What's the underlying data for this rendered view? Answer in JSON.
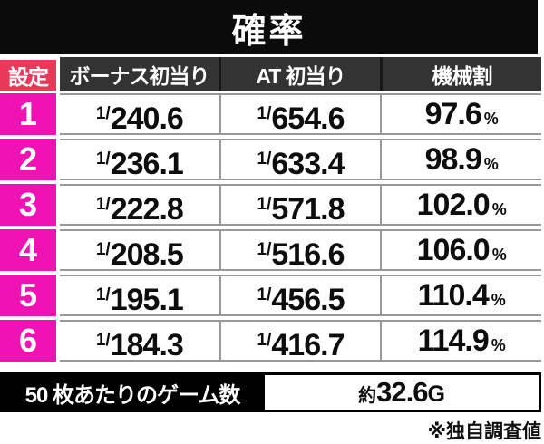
{
  "title": "確率",
  "colors": {
    "title_bar_bg": "#0b0b0b",
    "header_bg": "#333333",
    "setting_header_bg": "#e9395a",
    "setting_cell_bg": "#ee13b2",
    "row_border": "#999999"
  },
  "table": {
    "setting_header": "設定",
    "columns": [
      "ボーナス初当り",
      "AT 初当り",
      "機械割"
    ],
    "fraction_prefix": "1/",
    "percent_suffix": "%",
    "rows": [
      {
        "setting": "1",
        "bonus": "240.6",
        "at": "654.6",
        "payout": "97.6"
      },
      {
        "setting": "2",
        "bonus": "236.1",
        "at": "633.4",
        "payout": "98.9"
      },
      {
        "setting": "3",
        "bonus": "222.8",
        "at": "571.8",
        "payout": "102.0"
      },
      {
        "setting": "4",
        "bonus": "208.5",
        "at": "516.6",
        "payout": "106.0"
      },
      {
        "setting": "5",
        "bonus": "195.1",
        "at": "456.5",
        "payout": "110.4"
      },
      {
        "setting": "6",
        "bonus": "184.3",
        "at": "416.7",
        "payout": "114.9"
      }
    ]
  },
  "summary": {
    "label": "50 枚あたりのゲーム数",
    "value_prefix": "約",
    "value": "32.6",
    "value_suffix": "G"
  },
  "footnote": "※独自調査値",
  "chart_data": {
    "type": "table",
    "title": "確率",
    "columns": [
      "設定",
      "ボーナス初当り",
      "AT 初当り",
      "機械割"
    ],
    "rows": [
      [
        "1",
        "1/240.6",
        "1/654.6",
        "97.6%"
      ],
      [
        "2",
        "1/236.1",
        "1/633.4",
        "98.9%"
      ],
      [
        "3",
        "1/222.8",
        "1/571.8",
        "102.0%"
      ],
      [
        "4",
        "1/208.5",
        "1/516.6",
        "106.0%"
      ],
      [
        "5",
        "1/195.1",
        "1/456.5",
        "110.4%"
      ],
      [
        "6",
        "1/184.3",
        "1/416.7",
        "114.9%"
      ]
    ],
    "footer_row": [
      "50 枚あたりのゲーム数",
      "約32.6G"
    ],
    "annotation": "※独自調査値"
  }
}
